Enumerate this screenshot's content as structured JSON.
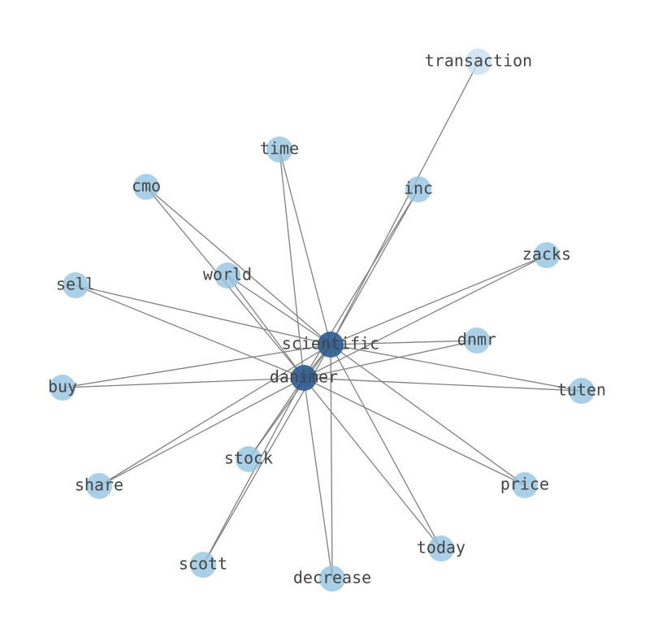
{
  "nodes": [
    {
      "label": "transaction"
    },
    {
      "label": "time"
    },
    {
      "label": "cmo"
    },
    {
      "label": "inc"
    },
    {
      "label": "zacks"
    },
    {
      "label": "world"
    },
    {
      "label": "sell"
    },
    {
      "label": "scientific"
    },
    {
      "label": "dnmr"
    },
    {
      "label": "danimer"
    },
    {
      "label": "buy"
    },
    {
      "label": "tuten"
    },
    {
      "label": "stock"
    },
    {
      "label": "share"
    },
    {
      "label": "price"
    },
    {
      "label": "today"
    },
    {
      "label": "scott"
    },
    {
      "label": "decrease"
    }
  ]
}
